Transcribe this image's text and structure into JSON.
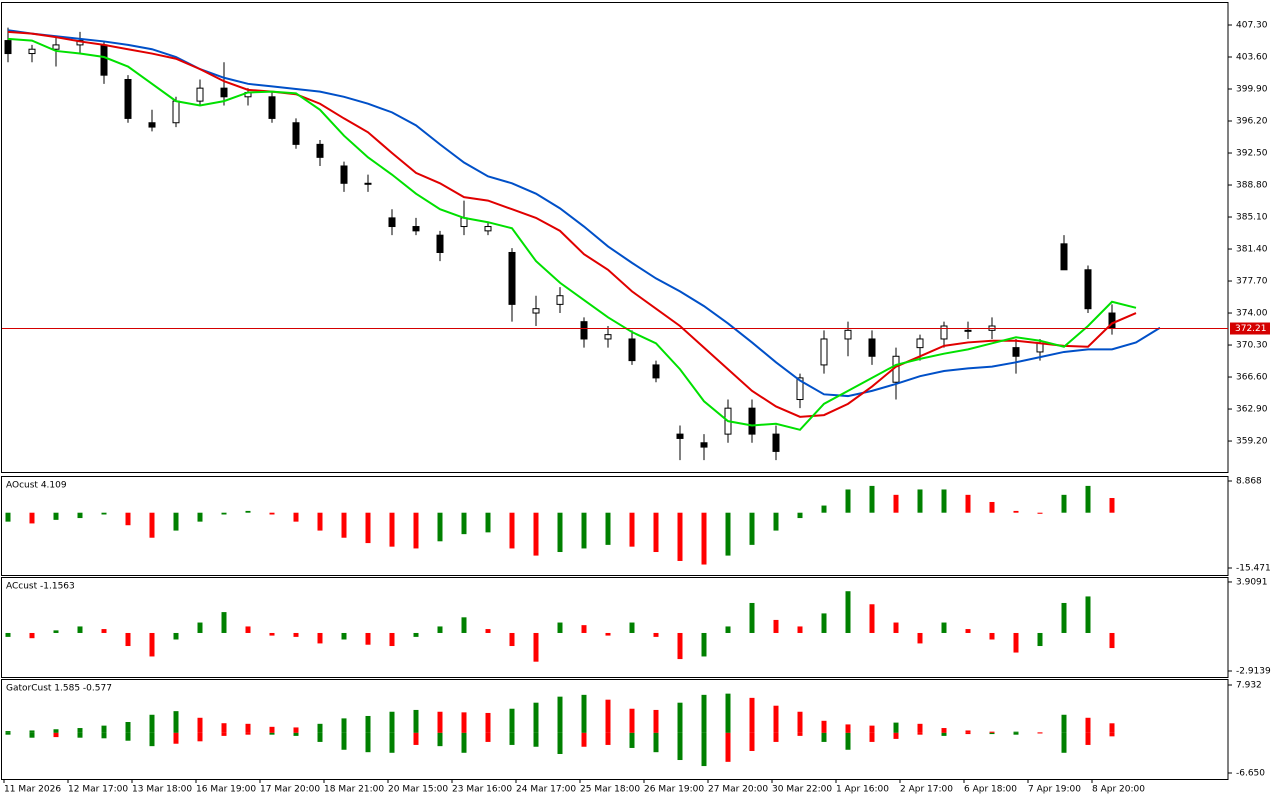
{
  "chart_data": [
    {
      "type": "candlestick",
      "ylim": [
        355.62,
        409.96
      ],
      "yticks": [
        {
          "value": 407.3,
          "label": "407.30"
        },
        {
          "value": 403.6,
          "label": "403.60"
        },
        {
          "value": 399.9,
          "label": "399.90"
        },
        {
          "value": 396.2,
          "label": "396.20"
        },
        {
          "value": 392.5,
          "label": "392.50"
        },
        {
          "value": 388.8,
          "label": "388.80"
        },
        {
          "value": 385.1,
          "label": "385.10"
        },
        {
          "value": 381.4,
          "label": "381.40"
        },
        {
          "value": 377.7,
          "label": "377.70"
        },
        {
          "value": 374,
          "label": "374.00"
        },
        {
          "value": 370.3,
          "label": "370.30"
        },
        {
          "value": 366.6,
          "label": "366.60"
        },
        {
          "value": 362.9,
          "label": "362.90"
        },
        {
          "value": 359.2,
          "label": "359.20"
        }
      ],
      "current_price": {
        "value": 372.21,
        "label": "372.21"
      },
      "current_color": "#d40000",
      "up_color": "#ffffff",
      "down_color": "#000000",
      "ohlc": [
        [
          405.5,
          407,
          403,
          404
        ],
        [
          404,
          405,
          403,
          404.5
        ],
        [
          404.5,
          406,
          402.5,
          405
        ],
        [
          405,
          406.5,
          404,
          405.5
        ],
        [
          405,
          405.5,
          400.5,
          401.5
        ],
        [
          401,
          401.5,
          396,
          396.5
        ],
        [
          396,
          397.5,
          395,
          395.5
        ],
        [
          396,
          399,
          395.5,
          398.5
        ],
        [
          398.5,
          401,
          398,
          400
        ],
        [
          400,
          403,
          398,
          399
        ],
        [
          399,
          400,
          398,
          399.5
        ],
        [
          399,
          399.5,
          396,
          396.5
        ],
        [
          396,
          396.5,
          393,
          393.5
        ],
        [
          393.5,
          394,
          391,
          392
        ],
        [
          391,
          391.5,
          388,
          389
        ],
        [
          389,
          390,
          388,
          389
        ],
        [
          385,
          386,
          383,
          384
        ],
        [
          384,
          385,
          383,
          383.5
        ],
        [
          383,
          383.5,
          380,
          381
        ],
        [
          384,
          387,
          383,
          385
        ],
        [
          383.5,
          384.5,
          383,
          384
        ],
        [
          381,
          381.5,
          373,
          375
        ],
        [
          374,
          376,
          372.5,
          374.5
        ],
        [
          375,
          377,
          374,
          376
        ],
        [
          373,
          373.5,
          370,
          371
        ],
        [
          371,
          372.5,
          370,
          371.5
        ],
        [
          371,
          372,
          368,
          368.5
        ],
        [
          368,
          368.5,
          366,
          366.5
        ],
        [
          360,
          361,
          357,
          359.5
        ],
        [
          359,
          360,
          357,
          358.5
        ],
        [
          360,
          364,
          359,
          363
        ],
        [
          363,
          364,
          359,
          360
        ],
        [
          360,
          361,
          357,
          358
        ],
        [
          364,
          367,
          363,
          366.5
        ],
        [
          368,
          372,
          367,
          371
        ],
        [
          371,
          373,
          369,
          372
        ],
        [
          371,
          372,
          368,
          369
        ],
        [
          366,
          370,
          364,
          369
        ],
        [
          370,
          371.5,
          368.5,
          371
        ],
        [
          371,
          373,
          370,
          372.5
        ],
        [
          372,
          373,
          371,
          372
        ],
        [
          372,
          373.5,
          371,
          372.5
        ],
        [
          370,
          371,
          367,
          369
        ],
        [
          369.5,
          371,
          368.5,
          370.5
        ],
        [
          382,
          383,
          379,
          379
        ],
        [
          379,
          379.5,
          374,
          374.5
        ],
        [
          374,
          375,
          371.5,
          372.21
        ]
      ],
      "lines": [
        {
          "color": "#0050c8",
          "values": [
            406.7,
            406.3,
            406,
            405.7,
            405.4,
            405,
            404.5,
            403.6,
            402.2,
            401.2,
            400.5,
            400.2,
            399.9,
            399.6,
            399,
            398.2,
            397.2,
            395.7,
            393.5,
            391.4,
            389.8,
            389,
            387.8,
            386.1,
            384,
            381.7,
            379.8,
            378,
            376.5,
            374.8,
            372.8,
            370.6,
            368.3,
            366.2,
            364.6,
            364.4,
            365,
            365.8,
            366.7,
            367.3,
            367.6,
            367.8,
            368.3,
            368.9,
            369.5,
            369.8,
            369.8,
            370.6,
            372.3
          ]
        },
        {
          "color": "#e00000",
          "values": [
            406.5,
            406.3,
            405.9,
            405.4,
            405,
            404.5,
            404,
            403.4,
            402.2,
            400.8,
            399.8,
            399.6,
            399.3,
            398.2,
            396.5,
            394.9,
            392.5,
            390.2,
            389,
            387.4,
            387,
            386,
            385,
            383.5,
            380.8,
            379,
            376.5,
            374.5,
            372.5,
            370,
            367.5,
            365,
            363.2,
            362,
            362.2,
            363.5,
            365.5,
            367.8,
            369,
            370.2,
            370.6,
            370.8,
            370.8,
            370.5,
            370.2,
            370.1,
            372.8,
            374,
            null
          ]
        },
        {
          "color": "#00e000",
          "values": [
            405.7,
            405.5,
            404.3,
            404,
            403.6,
            402.5,
            400.5,
            398.5,
            398,
            398.5,
            399.5,
            399.6,
            399.4,
            397.5,
            394.5,
            392,
            390,
            387.8,
            386,
            385,
            384.5,
            383.8,
            380,
            377.5,
            375.5,
            373.5,
            371.8,
            370.5,
            367.5,
            363.8,
            361.5,
            361,
            361.2,
            360.5,
            363.5,
            365,
            366.5,
            368,
            368.7,
            369.3,
            369.8,
            370.5,
            371.2,
            370.8,
            370.1,
            372.5,
            375.3,
            374.6,
            null
          ]
        }
      ],
      "time_axis": [
        "11 Mar 2026",
        "12 Mar 17:00",
        "13 Mar 18:00",
        "16 Mar 19:00",
        "17 Mar 20:00",
        "18 Mar 21:00",
        "20 Mar 15:00",
        "23 Mar 16:00",
        "24 Mar 17:00",
        "25 Mar 18:00",
        "26 Mar 19:00",
        "27 Mar 20:00",
        "30 Mar 22:00",
        "1 Apr 16:00",
        "2 Apr 17:00",
        "6 Apr 18:00",
        "7 Apr 19:00",
        "8 Apr 20:00"
      ]
    },
    {
      "type": "bar",
      "title": "AOcust 4.109",
      "ylim": [
        -17.43,
        10.27
      ],
      "yticks": [
        8.868,
        -15.471
      ],
      "up_color": "#008000",
      "down_color": "#ff0000",
      "values": [
        -2.5,
        -3,
        -2,
        -1.5,
        -0.5,
        -3.5,
        -7,
        -5,
        -2.5,
        -0.5,
        0.5,
        -0.5,
        -2.5,
        -5,
        -7,
        -8.5,
        -9.5,
        -10,
        -8,
        -6,
        -5.5,
        -10,
        -12,
        -11,
        -10,
        -9,
        -9.5,
        -11,
        -13.5,
        -14.5,
        -12,
        -9,
        -5,
        -1.5,
        2,
        6.5,
        7.5,
        5,
        6.5,
        6.5,
        5,
        3,
        0.5,
        -0.3,
        5,
        7.5,
        4.109
      ]
    },
    {
      "type": "bar",
      "title": "ACcust -1.1563",
      "ylim": [
        -3.374,
        4.29
      ],
      "yticks": [
        3.9091,
        -2.9139
      ],
      "up_color": "#008000",
      "down_color": "#ff0000",
      "values": [
        -0.3,
        -0.4,
        0.2,
        0.5,
        0.3,
        -1,
        -1.8,
        -0.5,
        0.8,
        1.6,
        0.5,
        -0.2,
        -0.3,
        -0.8,
        -0.5,
        -0.9,
        -1,
        -0.3,
        0.5,
        1.2,
        0.3,
        -1,
        -2.2,
        0.8,
        0.6,
        -0.2,
        0.8,
        -0.3,
        -2,
        -1.8,
        0.5,
        2.3,
        1,
        0.5,
        1.5,
        3.2,
        2.2,
        0.8,
        -0.8,
        0.8,
        0.3,
        -0.5,
        -1.5,
        -1,
        2.3,
        2.8,
        -1.1563
      ]
    },
    {
      "type": "gator",
      "title": "GatorCust 1.585 -0.577",
      "ylim": [
        -7.644,
        8.926
      ],
      "yticks": [
        7.932,
        {
          "value": -6.65,
          "label": "-6.650"
        }
      ],
      "up_color": "#008000",
      "down_color": "#ff0000",
      "series": [
        {
          "values": [
            0.3,
            0.4,
            0.6,
            0.8,
            1.2,
            1.8,
            3,
            3.6,
            2.5,
            1.6,
            1.5,
            1,
            0.9,
            1.5,
            2.4,
            2.8,
            3.5,
            3.8,
            3.5,
            3.4,
            3.3,
            4,
            5,
            6,
            6.3,
            5.5,
            4,
            3.8,
            5,
            6.3,
            6.5,
            5.8,
            4.5,
            3.5,
            2,
            1.4,
            1.2,
            1.7,
            1.5,
            0.8,
            0.4,
            0.2,
            0.2,
            0.1,
            3,
            2.5,
            1.585
          ]
        },
        {
          "values": [
            -0.3,
            -0.8,
            -0.7,
            -0.8,
            -0.9,
            -1.3,
            -2.2,
            -1.8,
            -1.4,
            -0.5,
            -0.3,
            -0.3,
            -0.5,
            -1.5,
            -2.8,
            -3.2,
            -3.3,
            -2,
            -2.2,
            -3.3,
            -1.5,
            -2,
            -2.3,
            -3.5,
            -2.3,
            -2,
            -2.5,
            -3.2,
            -4.5,
            -5.5,
            -4.8,
            -3,
            -1.5,
            -0.5,
            -1.5,
            -2.8,
            -1.5,
            -1,
            -0.3,
            -0.5,
            -0.2,
            -0.2,
            -0.3,
            -0.1,
            -3.3,
            -2,
            -0.577
          ]
        }
      ]
    }
  ]
}
